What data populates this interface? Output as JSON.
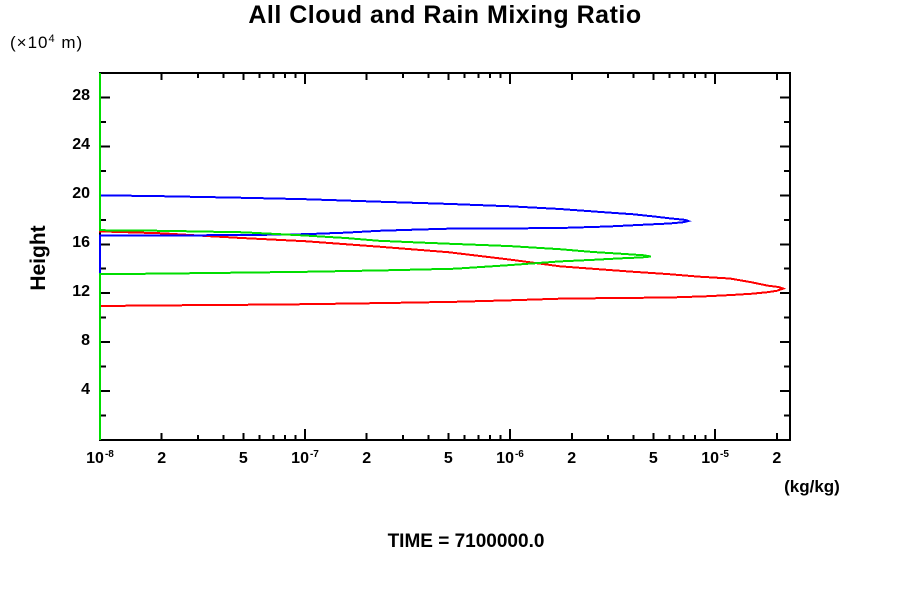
{
  "labels": {
    "y_unit_prefix": "(×10",
    "y_unit_sup": "4",
    "y_unit_suffix": " m)"
  },
  "chart_data": {
    "type": "line",
    "subtype": "vertical-profile",
    "title": "All Cloud and Rain Mixing Ratio",
    "xlabel": "(kg/kg)",
    "ylabel": "Height",
    "y_unit": "x10^4 m",
    "annotation": "TIME = 7100000.0",
    "x_scale": "log",
    "xlim": [
      1e-08,
      2.32e-05
    ],
    "ylim": [
      0,
      30
    ],
    "grid": false,
    "legend": "none",
    "x_labeled_ticks": [
      {
        "v": 1e-08,
        "base": "10",
        "sup": "-8"
      },
      {
        "v": 2e-08,
        "base": "2"
      },
      {
        "v": 5e-08,
        "base": "5"
      },
      {
        "v": 1e-07,
        "base": "10",
        "sup": "-7"
      },
      {
        "v": 2e-07,
        "base": "2"
      },
      {
        "v": 5e-07,
        "base": "5"
      },
      {
        "v": 1e-06,
        "base": "10",
        "sup": "-6"
      },
      {
        "v": 2e-06,
        "base": "2"
      },
      {
        "v": 5e-06,
        "base": "5"
      },
      {
        "v": 1e-05,
        "base": "10",
        "sup": "-5"
      },
      {
        "v": 2e-05,
        "base": "2"
      }
    ],
    "y_labeled_ticks": [
      4,
      8,
      12,
      16,
      20,
      24,
      28
    ],
    "y_minor_step": 2,
    "series": [
      {
        "name": "red-profile",
        "color": "#ff0000",
        "points": [
          [
            1e-08,
            0
          ],
          [
            1e-08,
            10.95
          ],
          [
            2e-08,
            11.0
          ],
          [
            5e-08,
            11.05
          ],
          [
            1e-07,
            11.1
          ],
          [
            2.5e-07,
            11.2
          ],
          [
            5.4e-07,
            11.3
          ],
          [
            1e-06,
            11.42
          ],
          [
            1.75e-06,
            11.55
          ],
          [
            3e-06,
            11.6
          ],
          [
            6e-06,
            11.65
          ],
          [
            9e-06,
            11.75
          ],
          [
            1.2e-05,
            11.85
          ],
          [
            1.5e-05,
            11.95
          ],
          [
            1.8e-05,
            12.08
          ],
          [
            2e-05,
            12.2
          ],
          [
            2.15e-05,
            12.38
          ],
          [
            2.05e-05,
            12.5
          ],
          [
            1.8e-05,
            12.62
          ],
          [
            1.5e-05,
            12.9
          ],
          [
            1.18e-05,
            13.2
          ],
          [
            8.4e-06,
            13.35
          ],
          [
            6e-06,
            13.55
          ],
          [
            4e-06,
            13.75
          ],
          [
            2.5e-06,
            14.0
          ],
          [
            1.75e-06,
            14.2
          ],
          [
            1e-06,
            14.75
          ],
          [
            5e-07,
            15.35
          ],
          [
            2.3e-07,
            15.8
          ],
          [
            1.6e-07,
            16.0
          ],
          [
            1e-07,
            16.25
          ],
          [
            5e-08,
            16.5
          ],
          [
            3.5e-08,
            16.65
          ],
          [
            2e-08,
            16.9
          ],
          [
            1e-08,
            17.05
          ],
          [
            1e-08,
            30
          ]
        ]
      },
      {
        "name": "blue-profile",
        "color": "#0000ff",
        "points": [
          [
            1e-08,
            0
          ],
          [
            1e-08,
            16.7
          ],
          [
            5e-08,
            16.75
          ],
          [
            1e-07,
            16.82
          ],
          [
            1.6e-07,
            16.95
          ],
          [
            2.3e-07,
            17.1
          ],
          [
            3.5e-07,
            17.2
          ],
          [
            5e-07,
            17.27
          ],
          [
            1e-06,
            17.3
          ],
          [
            1.75e-06,
            17.33
          ],
          [
            3e-06,
            17.45
          ],
          [
            4.5e-06,
            17.6
          ],
          [
            6e-06,
            17.7
          ],
          [
            7e-06,
            17.8
          ],
          [
            7.4e-06,
            17.9
          ],
          [
            7.2e-06,
            17.98
          ],
          [
            6.8e-06,
            18.03
          ],
          [
            6e-06,
            18.12
          ],
          [
            5e-06,
            18.28
          ],
          [
            4e-06,
            18.45
          ],
          [
            3e-06,
            18.6
          ],
          [
            1.75e-06,
            18.88
          ],
          [
            1e-06,
            19.1
          ],
          [
            5e-07,
            19.3
          ],
          [
            2.3e-07,
            19.48
          ],
          [
            1e-07,
            19.68
          ],
          [
            5e-08,
            19.8
          ],
          [
            2e-08,
            19.93
          ],
          [
            1e-08,
            20.0
          ],
          [
            1e-08,
            30
          ]
        ]
      },
      {
        "name": "green-profile",
        "color": "#00dd00",
        "points": [
          [
            1e-08,
            0
          ],
          [
            1e-08,
            13.55
          ],
          [
            2e-08,
            13.6
          ],
          [
            5e-08,
            13.68
          ],
          [
            1e-07,
            13.75
          ],
          [
            2.5e-07,
            13.87
          ],
          [
            5.4e-07,
            14.0
          ],
          [
            1e-06,
            14.3
          ],
          [
            1.75e-06,
            14.6
          ],
          [
            2.5e-06,
            14.72
          ],
          [
            3.5e-06,
            14.85
          ],
          [
            4.4e-06,
            14.93
          ],
          [
            4.87e-06,
            15.0
          ],
          [
            4.5e-06,
            15.1
          ],
          [
            3.5e-06,
            15.22
          ],
          [
            2.5e-06,
            15.38
          ],
          [
            1.75e-06,
            15.6
          ],
          [
            1e-06,
            15.85
          ],
          [
            5e-07,
            16.05
          ],
          [
            3.5e-07,
            16.15
          ],
          [
            2.3e-07,
            16.28
          ],
          [
            1.6e-07,
            16.5
          ],
          [
            1e-07,
            16.72
          ],
          [
            5e-08,
            16.98
          ],
          [
            2e-08,
            17.1
          ],
          [
            1e-08,
            17.15
          ],
          [
            1e-08,
            30
          ]
        ]
      }
    ]
  }
}
